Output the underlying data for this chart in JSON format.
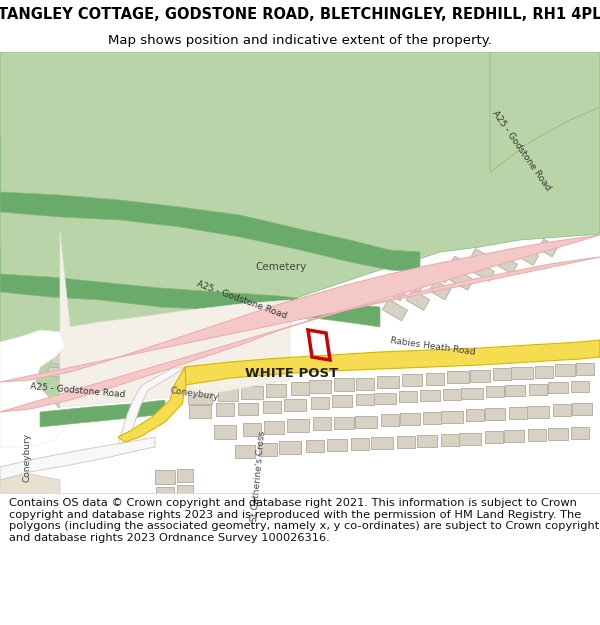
{
  "title_line1": "TANGLEY COTTAGE, GODSTONE ROAD, BLETCHINGLEY, REDHILL, RH1 4PL",
  "title_line2": "Map shows position and indicative extent of the property.",
  "footer_text": "Contains OS data © Crown copyright and database right 2021. This information is subject to Crown copyright and database rights 2023 and is reproduced with the permission of HM Land Registry. The polygons (including the associated geometry, namely x, y co-ordinates) are subject to Crown copyright and database rights 2023 Ordnance Survey 100026316.",
  "map_bg": "#f0ece2",
  "road_pink": "#f5c8c8",
  "road_pink_light": "#f9e0e0",
  "road_yellow": "#f5dc50",
  "road_yellow_light": "#faeea0",
  "green_light": "#b8d4a8",
  "green_mid": "#8ab87a",
  "green_dark": "#6aaa6a",
  "building_fill": "#d8d2c4",
  "building_edge": "#b8b2a4",
  "white_area": "#ffffff",
  "red_prop": "#cc0000",
  "title_fontsize": 10.5,
  "subtitle_fontsize": 9.5,
  "footer_fontsize": 8.2
}
